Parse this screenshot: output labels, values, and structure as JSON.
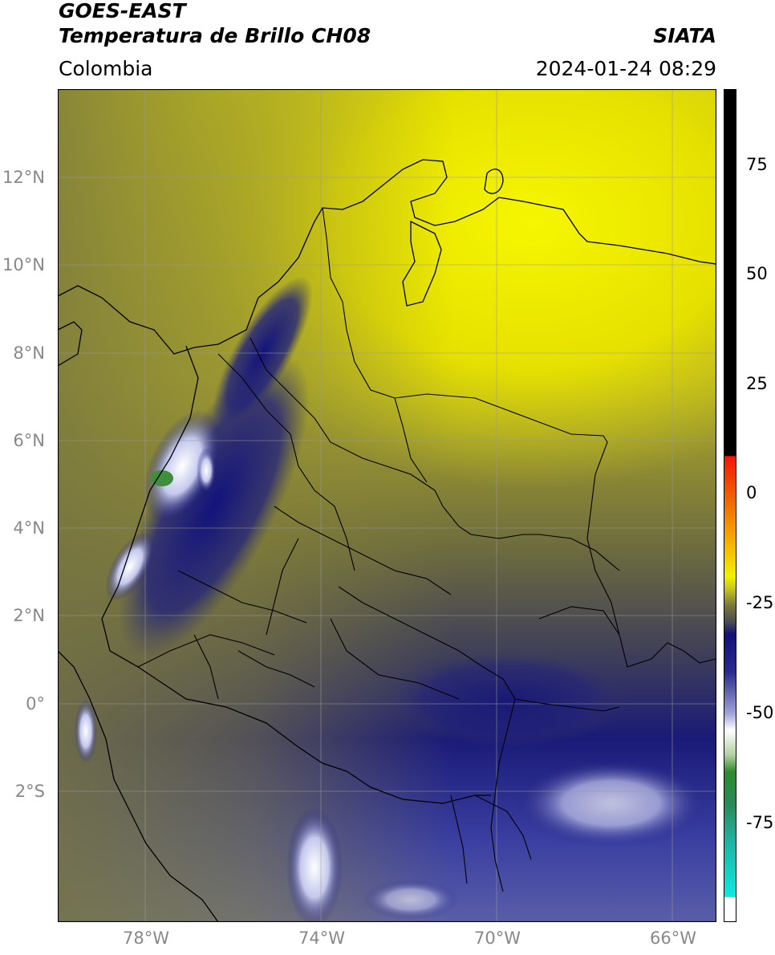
{
  "header": {
    "satellite": "GOES-EAST",
    "product": "Temperatura de Brillo CH08",
    "org": "SIATA",
    "region": "Colombia",
    "datetime": "2024-01-24 08:29"
  },
  "map": {
    "lon_range": [
      -80,
      -65
    ],
    "lat_range": [
      -5,
      14
    ],
    "lat_ticks": [
      "12°N",
      "10°N",
      "8°N",
      "6°N",
      "4°N",
      "2°N",
      "0°",
      "2°S"
    ],
    "lon_ticks": [
      "78°W",
      "74°W",
      "70°W",
      "66°W"
    ]
  },
  "colorbar": {
    "range": [
      -95,
      90
    ],
    "ticks": [
      "75",
      "50",
      "25",
      "0",
      "-25",
      "-50",
      "-75"
    ],
    "colors": {
      "black": "#000000",
      "red": "#e8230a",
      "orange": "#f5a000",
      "yellow": "#f2f200",
      "olive": "#6e6e3a",
      "gray": "#4a4a55",
      "navy": "#10107a",
      "lavender": "#c4c8e8",
      "white": "#ffffff",
      "green": "#2e8a2e",
      "cyan": "#19e0d0"
    }
  }
}
